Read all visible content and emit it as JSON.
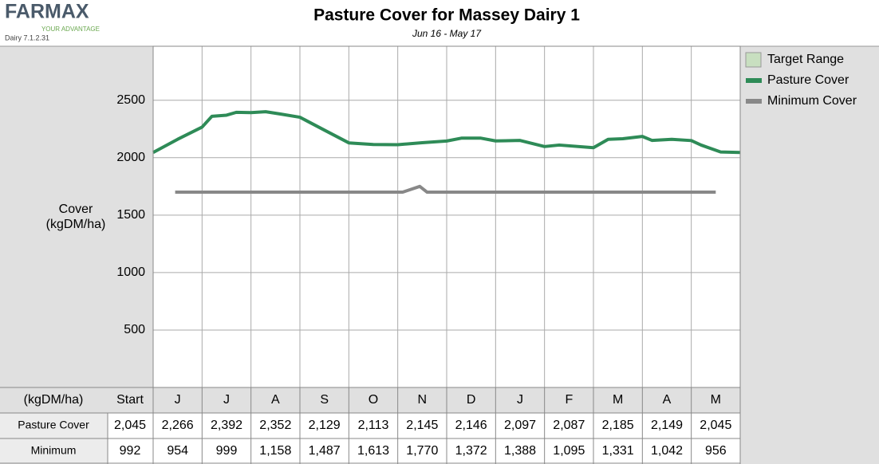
{
  "app": {
    "logo": "FARMAX",
    "tagline": "YOUR ADVANTAGE",
    "version": "Dairy 7.1.2.31"
  },
  "chart_data": {
    "type": "line",
    "title": "Pasture Cover for Massey Dairy 1",
    "subtitle": "Jun 16 - May 17",
    "y_label": [
      "Cover",
      "(kgDM/ha)"
    ],
    "categories": [
      "J",
      "J",
      "A",
      "S",
      "O",
      "N",
      "D",
      "J",
      "F",
      "M",
      "A",
      "M"
    ],
    "xlim": [
      0,
      12
    ],
    "ylim": [
      0,
      2970
    ],
    "yticks": [
      500,
      1000,
      1500,
      2000,
      2500
    ],
    "grid": true,
    "legend": "right",
    "series": [
      {
        "name": "Target Range",
        "color": "#c8dfc0",
        "x": [],
        "values": []
      },
      {
        "name": "Pasture Cover",
        "color": "#2e8b57",
        "x": [
          0,
          0.5,
          1,
          1.2,
          1.5,
          1.7,
          2,
          2.3,
          2.6,
          3,
          3.5,
          4,
          4.5,
          5,
          5.5,
          6,
          6.3,
          6.7,
          7,
          7.5,
          8,
          8.3,
          9,
          9.3,
          9.6,
          10,
          10.2,
          10.6,
          11,
          11.2,
          11.6,
          12
        ],
        "values": [
          2045,
          2160,
          2266,
          2360,
          2370,
          2395,
          2392,
          2400,
          2380,
          2352,
          2240,
          2129,
          2115,
          2113,
          2130,
          2145,
          2170,
          2170,
          2146,
          2150,
          2097,
          2110,
          2087,
          2160,
          2165,
          2185,
          2150,
          2160,
          2149,
          2110,
          2050,
          2045
        ]
      },
      {
        "name": "Minimum Cover",
        "color": "#888888",
        "x": [
          0.45,
          5.1,
          5.45,
          5.6,
          11.5
        ],
        "values": [
          1700,
          1700,
          1750,
          1700,
          1700
        ]
      }
    ],
    "table": {
      "unit": "(kgDM/ha)",
      "start_label": "Start",
      "rows": [
        {
          "name": "Pasture Cover",
          "start": "2,045",
          "values": [
            "2,266",
            "2,392",
            "2,352",
            "2,129",
            "2,113",
            "2,145",
            "2,146",
            "2,097",
            "2,087",
            "2,185",
            "2,149",
            "2,045"
          ]
        },
        {
          "name": "Minimum",
          "start": "992",
          "values": [
            "954",
            "999",
            "1,158",
            "1,487",
            "1,613",
            "1,770",
            "1,372",
            "1,388",
            "1,095",
            "1,331",
            "1,042",
            "956"
          ]
        }
      ]
    }
  }
}
